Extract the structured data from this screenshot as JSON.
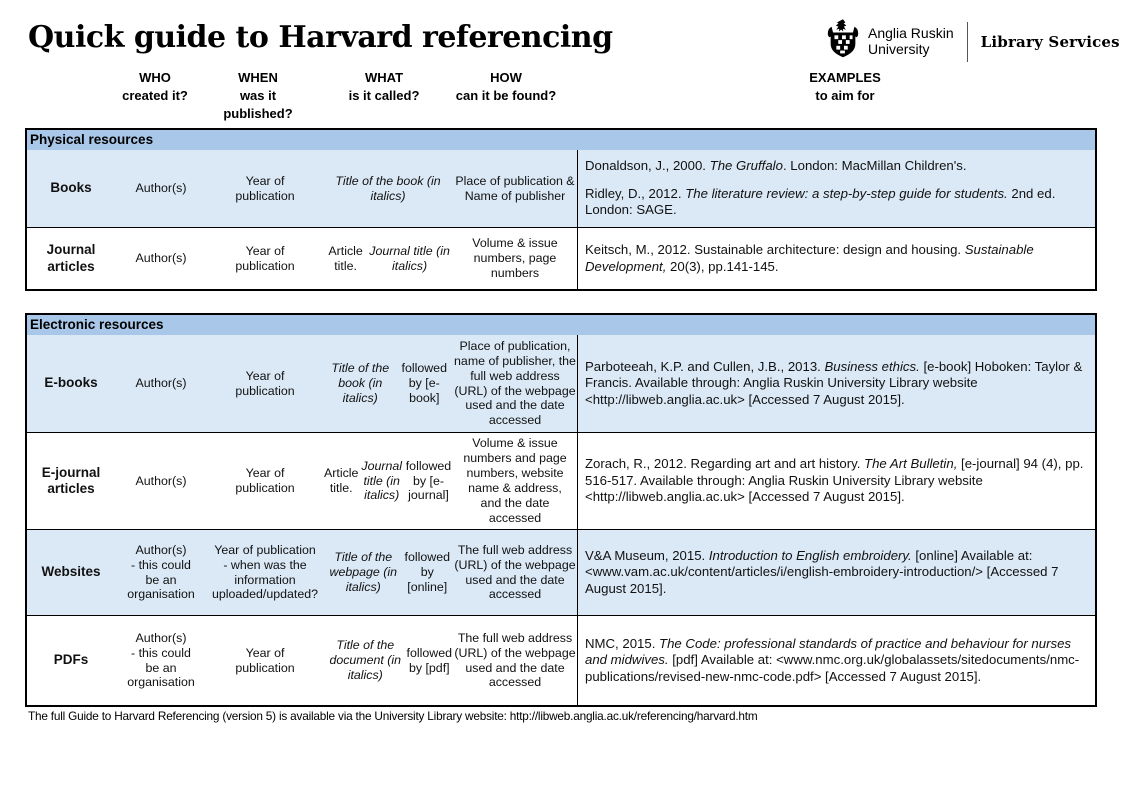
{
  "header": {
    "title": "Quick guide to Harvard referencing"
  },
  "logo": {
    "crest_icon": "anglia-ruskin-crest-icon",
    "org_name": "Anglia Ruskin\nUniversity",
    "dept": "Library Services"
  },
  "column_headers": {
    "who": "WHO\ncreated it?",
    "when": "WHEN\nwas it\npublished?",
    "what": "WHAT\nis it called?",
    "how": "HOW\ncan it be found?",
    "examples": "EXAMPLES\nto aim for"
  },
  "physical": {
    "section": "Physical resources",
    "rows": [
      {
        "type": "Books",
        "who": "Author(s)",
        "when": "Year of\npublication",
        "what": [
          {
            "t": "Title of the book\n(in italics)",
            "i": true
          }
        ],
        "how": "Place of publication &\nName of publisher",
        "examples": [
          [
            {
              "t": "Donaldson, J., 2000. "
            },
            {
              "t": "The Gruffalo",
              "i": true
            },
            {
              "t": ". London: MacMillan Children's."
            }
          ],
          [
            {
              "t": "Ridley, D., 2012. "
            },
            {
              "t": "The literature review: a step-by-step guide for students.",
              "i": true
            },
            {
              "t": " 2nd ed. London: SAGE."
            }
          ]
        ]
      },
      {
        "type": "Journal articles",
        "who": "Author(s)",
        "when": "Year of\npublication",
        "what": [
          {
            "t": "Article title. "
          },
          {
            "t": "Journal title (in italics)",
            "i": true
          }
        ],
        "how": "Volume & issue\nnumbers, page\nnumbers",
        "examples": [
          [
            {
              "t": "Keitsch, M., 2012. Sustainable architecture: design and housing. "
            },
            {
              "t": "Sustainable Development,",
              "i": true
            },
            {
              "t": " 20(3), pp.141-145."
            }
          ]
        ]
      }
    ]
  },
  "electronic": {
    "section": "Electronic resources",
    "rows": [
      {
        "type": "E-books",
        "who": "Author(s)",
        "when": "Year of\npublication",
        "what": [
          {
            "t": "Title of the book (in italics)",
            "i": true
          },
          {
            "t": " followed by [e-book]"
          }
        ],
        "how": "Place of publication,\nname of publisher, the\nfull web address\n(URL) of the webpage\nused and the date\naccessed",
        "examples": [
          [
            {
              "t": "Parboteeah, K.P. and Cullen, J.B., 2013. "
            },
            {
              "t": "Business ethics.",
              "i": true
            },
            {
              "t": " [e-book] Hoboken: Taylor & Francis. Available through: Anglia Ruskin University Library website <http://libweb.anglia.ac.uk> [Accessed 7 August 2015]."
            }
          ]
        ]
      },
      {
        "type": "E-journal articles",
        "who": "Author(s)",
        "when": "Year of\npublication",
        "what": [
          {
            "t": "Article title. "
          },
          {
            "t": "Journal title (in italics)",
            "i": true
          },
          {
            "t": " followed by [e-journal]"
          }
        ],
        "how": "Volume & issue\nnumbers and page\nnumbers, website\nname & address,\nand the date\naccessed",
        "examples": [
          [
            {
              "t": "Zorach, R., 2012. Regarding art and art history. "
            },
            {
              "t": "The Art Bulletin,",
              "i": true
            },
            {
              "t": " [e-journal] 94 (4), pp. 516-517. Available through: Anglia Ruskin University Library website <http://libweb.anglia.ac.uk> [Accessed 7 August 2015]."
            }
          ]
        ]
      },
      {
        "type": "Websites",
        "who": "Author(s)\n- this could\nbe an\norganisation",
        "when": "Year of publication\n- when was the\ninformation\nuploaded/updated?",
        "what": [
          {
            "t": "Title of the webpage (in italics)",
            "i": true
          },
          {
            "t": " followed by [online]"
          }
        ],
        "how": "The full web address\n(URL) of the webpage\nused and the date\naccessed",
        "examples": [
          [
            {
              "t": "V&A Museum, 2015. "
            },
            {
              "t": "Introduction to English embroidery.",
              "i": true
            },
            {
              "t": " [online] Available at: <www.vam.ac.uk/content/articles/i/english-embroidery-introduction/> [Accessed 7 August 2015]."
            }
          ]
        ]
      },
      {
        "type": "PDFs",
        "who": "Author(s)\n- this could\nbe an\norganisation",
        "when": "Year of\npublication",
        "what": [
          {
            "t": "Title of the document (in italics)",
            "i": true
          },
          {
            "t": " followed by [pdf]"
          }
        ],
        "how": "The full web address\n(URL) of the webpage\nused and the date\naccessed",
        "examples": [
          [
            {
              "t": "NMC, 2015. "
            },
            {
              "t": "The Code: professional standards of practice and behaviour for nurses and midwives.",
              "i": true
            },
            {
              "t": " [pdf] Available at: <www.nmc.org.uk/globalassets/sitedocuments/nmc-publications/revised-new-nmc-code.pdf> [Accessed 7 August 2015]."
            }
          ]
        ]
      }
    ]
  },
  "footer": {
    "text": "The full Guide to Harvard Referencing (version 5) is available via the University Library website: http://libweb.anglia.ac.uk/referencing/harvard.htm"
  }
}
